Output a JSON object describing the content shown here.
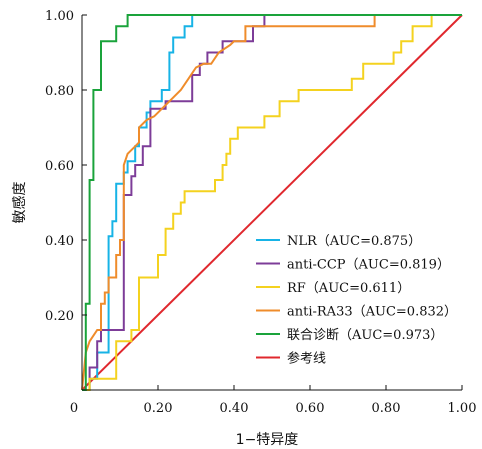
{
  "chart_data": {
    "type": "line",
    "xlabel": "1−特异度",
    "ylabel": "敏感度",
    "xlim": [
      0,
      1
    ],
    "ylim": [
      0,
      1
    ],
    "x_ticks": [
      "0",
      "0.20",
      "0.40",
      "0.60",
      "0.80",
      "1.00"
    ],
    "y_ticks": [
      "0.20",
      "0.40",
      "0.60",
      "0.80",
      "1.00"
    ],
    "grid": false,
    "legend_position": "bottom-right",
    "series": [
      {
        "name": "NLR（AUC=0.875）",
        "color": "#17b3e6",
        "points": [
          [
            0,
            0
          ],
          [
            0.02,
            0
          ],
          [
            0.02,
            0.03
          ],
          [
            0.04,
            0.03
          ],
          [
            0.04,
            0.1
          ],
          [
            0.06,
            0.1
          ],
          [
            0.07,
            0.1
          ],
          [
            0.07,
            0.41
          ],
          [
            0.08,
            0.41
          ],
          [
            0.08,
            0.45
          ],
          [
            0.09,
            0.45
          ],
          [
            0.09,
            0.55
          ],
          [
            0.11,
            0.55
          ],
          [
            0.11,
            0.58
          ],
          [
            0.12,
            0.58
          ],
          [
            0.12,
            0.61
          ],
          [
            0.14,
            0.61
          ],
          [
            0.14,
            0.65
          ],
          [
            0.15,
            0.65
          ],
          [
            0.15,
            0.7
          ],
          [
            0.17,
            0.7
          ],
          [
            0.17,
            0.74
          ],
          [
            0.18,
            0.74
          ],
          [
            0.18,
            0.77
          ],
          [
            0.21,
            0.77
          ],
          [
            0.21,
            0.8
          ],
          [
            0.23,
            0.8
          ],
          [
            0.23,
            0.9
          ],
          [
            0.24,
            0.9
          ],
          [
            0.24,
            0.94
          ],
          [
            0.27,
            0.94
          ],
          [
            0.27,
            0.97
          ],
          [
            0.29,
            0.97
          ],
          [
            0.29,
            1
          ],
          [
            1,
            1
          ]
        ]
      },
      {
        "name": "anti-CCP（AUC=0.819）",
        "color": "#7d3c98",
        "points": [
          [
            0,
            0
          ],
          [
            0.02,
            0
          ],
          [
            0.02,
            0.06
          ],
          [
            0.04,
            0.06
          ],
          [
            0.04,
            0.13
          ],
          [
            0.05,
            0.13
          ],
          [
            0.05,
            0.16
          ],
          [
            0.11,
            0.16
          ],
          [
            0.11,
            0.52
          ],
          [
            0.13,
            0.52
          ],
          [
            0.13,
            0.57
          ],
          [
            0.14,
            0.57
          ],
          [
            0.14,
            0.6
          ],
          [
            0.16,
            0.6
          ],
          [
            0.16,
            0.65
          ],
          [
            0.18,
            0.65
          ],
          [
            0.18,
            0.75
          ],
          [
            0.22,
            0.75
          ],
          [
            0.22,
            0.77
          ],
          [
            0.29,
            0.77
          ],
          [
            0.29,
            0.84
          ],
          [
            0.31,
            0.84
          ],
          [
            0.31,
            0.87
          ],
          [
            0.33,
            0.87
          ],
          [
            0.33,
            0.9
          ],
          [
            0.37,
            0.9
          ],
          [
            0.37,
            0.93
          ],
          [
            0.45,
            0.93
          ],
          [
            0.45,
            0.97
          ],
          [
            0.48,
            0.97
          ],
          [
            0.48,
            1
          ],
          [
            1,
            1
          ]
        ]
      },
      {
        "name": "RF（AUC=0.611）",
        "color": "#f4d21f",
        "points": [
          [
            0,
            0
          ],
          [
            0.02,
            0
          ],
          [
            0.02,
            0.03
          ],
          [
            0.09,
            0.03
          ],
          [
            0.09,
            0.13
          ],
          [
            0.1,
            0.13
          ],
          [
            0.13,
            0.13
          ],
          [
            0.13,
            0.16
          ],
          [
            0.15,
            0.16
          ],
          [
            0.15,
            0.3
          ],
          [
            0.2,
            0.3
          ],
          [
            0.2,
            0.36
          ],
          [
            0.22,
            0.36
          ],
          [
            0.22,
            0.43
          ],
          [
            0.24,
            0.43
          ],
          [
            0.24,
            0.47
          ],
          [
            0.26,
            0.47
          ],
          [
            0.26,
            0.5
          ],
          [
            0.27,
            0.5
          ],
          [
            0.27,
            0.53
          ],
          [
            0.35,
            0.53
          ],
          [
            0.35,
            0.56
          ],
          [
            0.37,
            0.56
          ],
          [
            0.37,
            0.6
          ],
          [
            0.38,
            0.6
          ],
          [
            0.38,
            0.63
          ],
          [
            0.39,
            0.63
          ],
          [
            0.39,
            0.67
          ],
          [
            0.41,
            0.67
          ],
          [
            0.41,
            0.7
          ],
          [
            0.48,
            0.7
          ],
          [
            0.48,
            0.73
          ],
          [
            0.52,
            0.73
          ],
          [
            0.52,
            0.77
          ],
          [
            0.57,
            0.77
          ],
          [
            0.57,
            0.8
          ],
          [
            0.71,
            0.8
          ],
          [
            0.71,
            0.83
          ],
          [
            0.74,
            0.83
          ],
          [
            0.74,
            0.87
          ],
          [
            0.82,
            0.87
          ],
          [
            0.82,
            0.9
          ],
          [
            0.84,
            0.9
          ],
          [
            0.84,
            0.93
          ],
          [
            0.87,
            0.93
          ],
          [
            0.87,
            0.97
          ],
          [
            0.92,
            0.97
          ],
          [
            0.92,
            1
          ],
          [
            1,
            1
          ]
        ]
      },
      {
        "name": "anti-RA33（AUC=0.832）",
        "color": "#ef8c2b",
        "points": [
          [
            0,
            0
          ],
          [
            0.01,
            0.1
          ],
          [
            0.02,
            0.13
          ],
          [
            0.04,
            0.16
          ],
          [
            0.05,
            0.16
          ],
          [
            0.05,
            0.23
          ],
          [
            0.06,
            0.23
          ],
          [
            0.06,
            0.26
          ],
          [
            0.07,
            0.26
          ],
          [
            0.07,
            0.3
          ],
          [
            0.09,
            0.3
          ],
          [
            0.09,
            0.36
          ],
          [
            0.1,
            0.36
          ],
          [
            0.1,
            0.4
          ],
          [
            0.11,
            0.4
          ],
          [
            0.11,
            0.6
          ],
          [
            0.12,
            0.63
          ],
          [
            0.14,
            0.65
          ],
          [
            0.15,
            0.66
          ],
          [
            0.15,
            0.7
          ],
          [
            0.17,
            0.72
          ],
          [
            0.19,
            0.73
          ],
          [
            0.23,
            0.77
          ],
          [
            0.26,
            0.8
          ],
          [
            0.28,
            0.83
          ],
          [
            0.3,
            0.86
          ],
          [
            0.32,
            0.87
          ],
          [
            0.34,
            0.87
          ],
          [
            0.36,
            0.9
          ],
          [
            0.39,
            0.92
          ],
          [
            0.4,
            0.93
          ],
          [
            0.43,
            0.93
          ],
          [
            0.43,
            0.97
          ],
          [
            0.77,
            0.97
          ],
          [
            0.77,
            1
          ],
          [
            1,
            1
          ]
        ]
      },
      {
        "name": "联合诊断（AUC=0.973）",
        "color": "#1aa33b",
        "points": [
          [
            0,
            0
          ],
          [
            0.01,
            0
          ],
          [
            0.01,
            0.23
          ],
          [
            0.02,
            0.23
          ],
          [
            0.02,
            0.56
          ],
          [
            0.03,
            0.56
          ],
          [
            0.03,
            0.8
          ],
          [
            0.05,
            0.8
          ],
          [
            0.05,
            0.93
          ],
          [
            0.09,
            0.93
          ],
          [
            0.09,
            0.97
          ],
          [
            0.12,
            0.97
          ],
          [
            0.12,
            1
          ],
          [
            1,
            1
          ]
        ]
      },
      {
        "name": "参考线",
        "color": "#e0282e",
        "points": [
          [
            0,
            0
          ],
          [
            1,
            1
          ]
        ]
      }
    ]
  }
}
